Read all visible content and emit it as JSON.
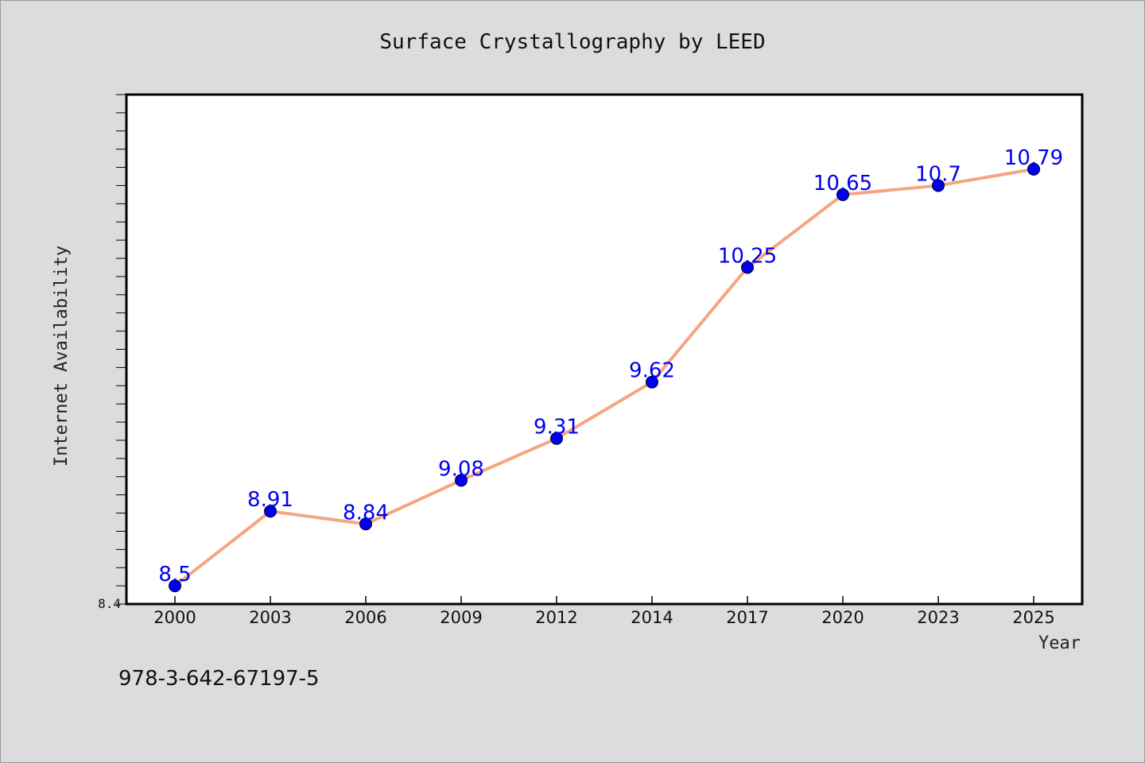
{
  "chart_data": {
    "type": "line",
    "title": "Surface Crystallography by LEED",
    "xlabel": "Year",
    "ylabel": "Internet Availability",
    "categories": [
      "2000",
      "2003",
      "2006",
      "2009",
      "2012",
      "2014",
      "2017",
      "2020",
      "2023",
      "2025"
    ],
    "series": [
      {
        "values": [
          8.5,
          8.91,
          8.84,
          9.08,
          9.31,
          9.62,
          10.25,
          10.65,
          10.7,
          10.79
        ],
        "data_labels": [
          "8.5",
          "8.91",
          "8.84",
          "9.08",
          "9.31",
          "9.62",
          "10.25",
          "10.65",
          "10.7",
          "10.79"
        ]
      }
    ],
    "ylim": [
      8.4,
      11.2
    ],
    "y_tick_labels": [
      "8.4"
    ],
    "grid": false,
    "legend": "none",
    "colors": {
      "line": "#f4a582",
      "marker": "#0000ee",
      "data_label": "#0000ee",
      "background": "#dcdcdc",
      "plot_area": "#ffffff"
    }
  },
  "footnote": "978-3-642-67197-5"
}
